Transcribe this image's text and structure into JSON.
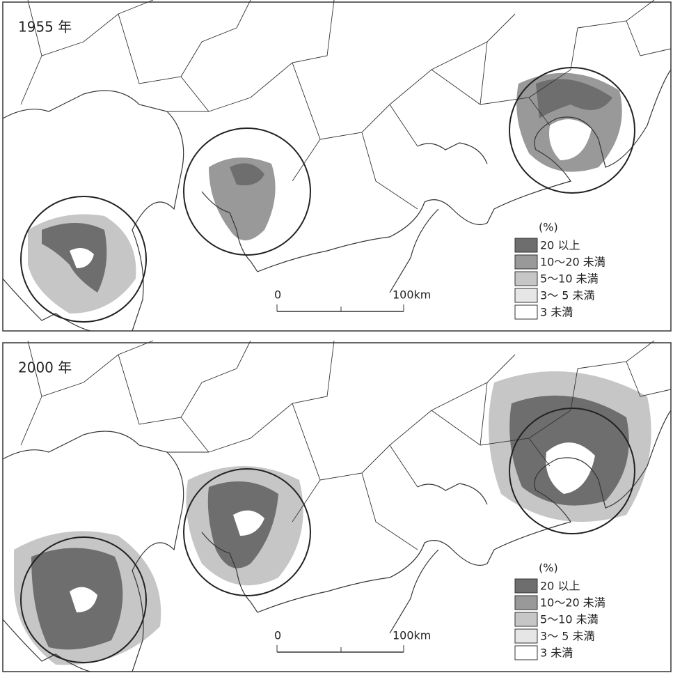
{
  "panels": [
    {
      "title": "1955 年",
      "legend": {
        "unit": "(%)",
        "items": [
          {
            "label": "20 以上",
            "color": "#6e6e6e"
          },
          {
            "label": "10～20 未満",
            "color": "#999999"
          },
          {
            "label": "5～10 未満",
            "color": "#c6c6c6"
          },
          {
            "label": "3～ 5 未満",
            "color": "#e6e6e6"
          },
          {
            "label": "3 未満",
            "color": "#ffffff"
          }
        ]
      },
      "scale": {
        "start": "0",
        "end": "100km"
      }
    },
    {
      "title": "2000 年",
      "legend": {
        "unit": "(%)",
        "items": [
          {
            "label": "20 以上",
            "color": "#6e6e6e"
          },
          {
            "label": "10～20 未満",
            "color": "#999999"
          },
          {
            "label": "5～10 未満",
            "color": "#c6c6c6"
          },
          {
            "label": "3～ 5 未満",
            "color": "#e6e6e6"
          },
          {
            "label": "3 未満",
            "color": "#ffffff"
          }
        ]
      },
      "scale": {
        "start": "0",
        "end": "100km"
      }
    }
  ]
}
